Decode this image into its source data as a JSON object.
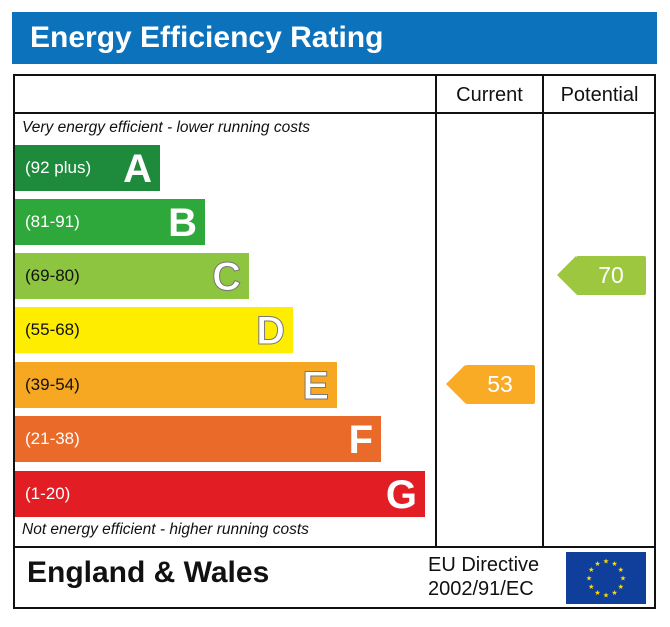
{
  "title": "Energy Efficiency Rating",
  "chart_data": {
    "type": "bar",
    "title": "Energy Efficiency Rating",
    "columns": [
      "Current",
      "Potential"
    ],
    "top_note": "Very energy efficient - lower running costs",
    "bottom_note": "Not energy efficient - higher running costs",
    "bands": [
      {
        "range": "(92 plus)",
        "letter": "A",
        "color": "#1e8b3c"
      },
      {
        "range": "(81-91)",
        "letter": "B",
        "color": "#2ea83a"
      },
      {
        "range": "(69-80)",
        "letter": "C",
        "color": "#8dc540"
      },
      {
        "range": "(55-68)",
        "letter": "D",
        "color": "#ffed00"
      },
      {
        "range": "(39-54)",
        "letter": "E",
        "color": "#f7a823"
      },
      {
        "range": "(21-38)",
        "letter": "F",
        "color": "#ea6a2a"
      },
      {
        "range": "(1-20)",
        "letter": "G",
        "color": "#e31d24"
      }
    ],
    "current": {
      "value": 53,
      "band": "E",
      "color": "#f9ab25"
    },
    "potential": {
      "value": 70,
      "band": "C",
      "color": "#9dc73e"
    }
  },
  "footer": {
    "region": "England & Wales",
    "directive_line1": "EU Directive",
    "directive_line2": "2002/91/EC"
  }
}
